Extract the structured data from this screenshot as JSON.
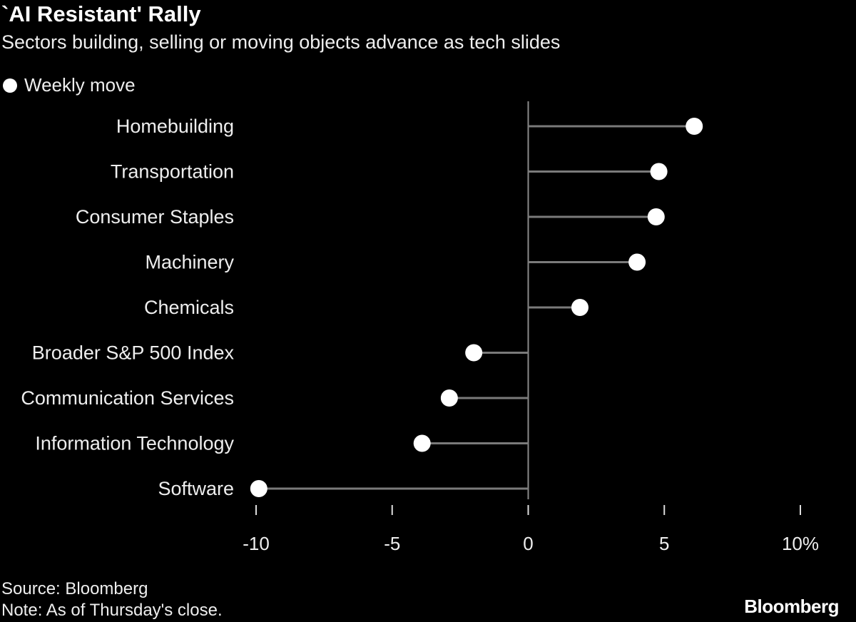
{
  "chart_data": {
    "type": "scatter",
    "title": "`AI Resistant' Rally",
    "subtitle": "Sectors building, selling or moving objects advance as tech slides",
    "legend": {
      "placement": "top-left",
      "entries": [
        "Weekly move"
      ]
    },
    "categories": [
      "Homebuilding",
      "Transportation",
      "Consumer Staples",
      "Machinery",
      "Chemicals",
      "Broader S&P 500 Index",
      "Communication Services",
      "Information Technology",
      "Software"
    ],
    "series": [
      {
        "name": "Weekly move",
        "values": [
          6.1,
          4.8,
          4.7,
          4.0,
          1.9,
          -2.0,
          -2.9,
          -3.9,
          -9.9
        ]
      }
    ],
    "xlim": [
      -10,
      10
    ],
    "xticks": [
      -10,
      -5,
      0,
      5,
      10
    ],
    "xtick_labels": [
      "-10",
      "-5",
      "0",
      "5",
      "10%"
    ],
    "grid": false,
    "colors": {
      "background": "#000000",
      "marker": "#ffffff",
      "stem": "#7a7a7a",
      "axis": "#8a8a8a"
    }
  },
  "footer": {
    "source": "Source: Bloomberg",
    "note": "Note: As of Thursday's close.",
    "logo": "Bloomberg"
  }
}
